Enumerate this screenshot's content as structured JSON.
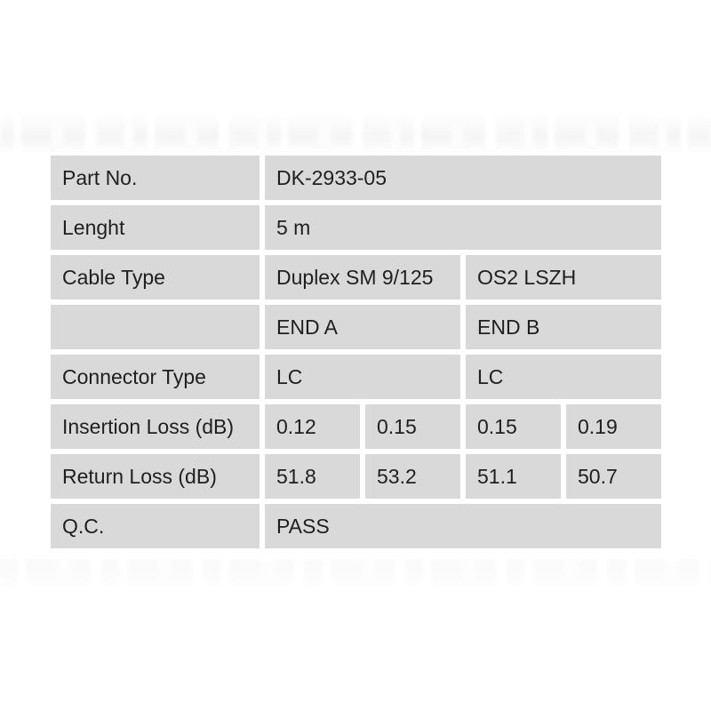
{
  "colors": {
    "page_background": "#ffffff",
    "cell_background": "#d9d9d9",
    "cell_text": "#1f1f1f",
    "gutter": "#ffffff"
  },
  "spec_table": {
    "columns": {
      "label_column_count": 1,
      "value_column_count": 4
    },
    "rows": [
      {
        "name": "part-no",
        "label": "Part No.",
        "cells": [
          {
            "text": "DK-2933-05",
            "span": 4
          }
        ]
      },
      {
        "name": "length",
        "label": "Lenght",
        "cells": [
          {
            "text": "5 m",
            "span": 4
          }
        ]
      },
      {
        "name": "cable-type",
        "label": "Cable Type",
        "cells": [
          {
            "text": "Duplex SM 9/125",
            "span": 2
          },
          {
            "text": "OS2 LSZH",
            "span": 2
          }
        ]
      },
      {
        "name": "end-header",
        "label": "",
        "cells": [
          {
            "text": "END A",
            "span": 2
          },
          {
            "text": "END B",
            "span": 2
          }
        ]
      },
      {
        "name": "connector-type",
        "label": "Connector Type",
        "cells": [
          {
            "text": "LC",
            "span": 2
          },
          {
            "text": "LC",
            "span": 2
          }
        ]
      },
      {
        "name": "insertion-loss",
        "label": "Insertion Loss (dB)",
        "cells": [
          {
            "text": "0.12",
            "span": 1
          },
          {
            "text": "0.15",
            "span": 1
          },
          {
            "text": "0.15",
            "span": 1
          },
          {
            "text": "0.19",
            "span": 1
          }
        ]
      },
      {
        "name": "return-loss",
        "label": "Return Loss (dB)",
        "cells": [
          {
            "text": "51.8",
            "span": 1
          },
          {
            "text": "53.2",
            "span": 1
          },
          {
            "text": "51.1",
            "span": 1
          },
          {
            "text": "50.7",
            "span": 1
          }
        ]
      },
      {
        "name": "qc",
        "label": "Q.C.",
        "cells": [
          {
            "text": "PASS",
            "span": 4
          }
        ]
      }
    ]
  }
}
